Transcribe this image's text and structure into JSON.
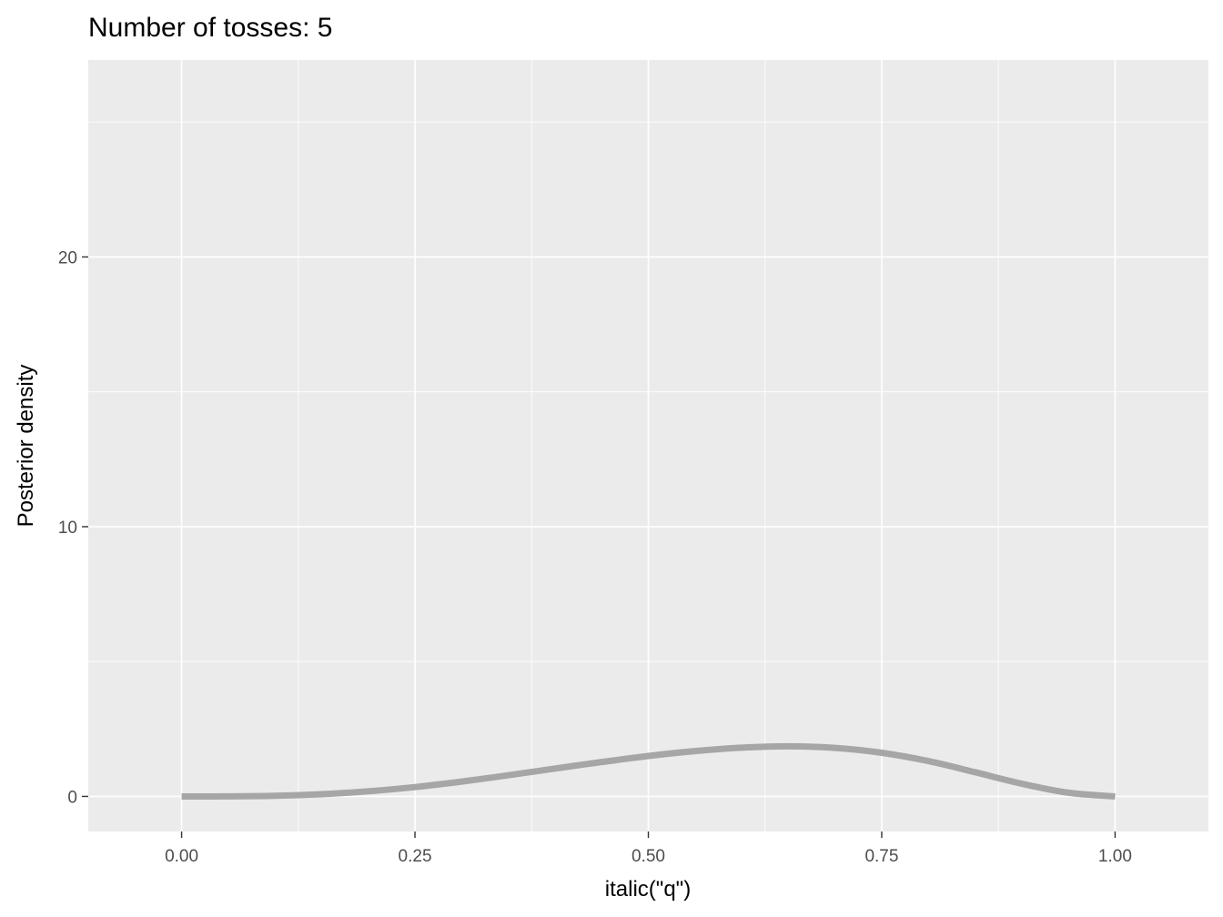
{
  "chart_data": {
    "type": "line",
    "title": "Number of tosses: 5",
    "xlabel": "italic(\"q\")",
    "ylabel": "Posterior density",
    "xlim": [
      -0.1,
      1.1
    ],
    "ylim": [
      -1.3,
      27.3
    ],
    "x_ticks": [
      0,
      0.25,
      0.5,
      0.75,
      1
    ],
    "x_tick_labels": [
      "0.00",
      "0.25",
      "0.50",
      "0.75",
      "1.00"
    ],
    "y_ticks": [
      0,
      10,
      20
    ],
    "y_tick_labels": [
      "0",
      "10",
      "20"
    ],
    "grid": true,
    "series": [
      {
        "line_color": "#a6a6a6",
        "x": [
          0,
          0.05,
          0.1,
          0.15,
          0.2,
          0.25,
          0.3,
          0.35,
          0.4,
          0.45,
          0.5,
          0.55,
          0.6,
          0.65,
          0.7,
          0.75,
          0.8,
          0.85,
          0.9,
          0.95,
          1
        ],
        "y": [
          0,
          0.001,
          0.022,
          0.082,
          0.19,
          0.347,
          0.55,
          0.785,
          1.034,
          1.275,
          1.5,
          1.681,
          1.806,
          1.856,
          1.798,
          1.617,
          1.311,
          0.898,
          0.472,
          0.137,
          0
        ]
      }
    ]
  },
  "colors": {
    "panel_background": "#ebebeb",
    "gridline": "#ffffff",
    "tick_mark": "#333333"
  }
}
